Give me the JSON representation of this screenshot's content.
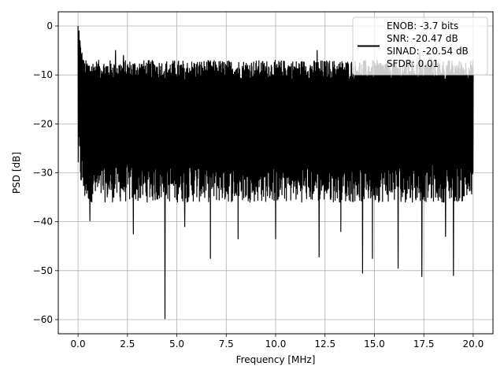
{
  "chart_data": {
    "type": "line",
    "title": "",
    "xlabel": "Frequency [MHz]",
    "ylabel": "PSD [dB]",
    "xlim": [
      -1.0,
      21.0
    ],
    "ylim": [
      -62.9,
      2.9
    ],
    "xticks": [
      0.0,
      2.5,
      5.0,
      7.5,
      10.0,
      12.5,
      15.0,
      17.5,
      20.0
    ],
    "xtick_labels": [
      "0.0",
      "2.5",
      "5.0",
      "7.5",
      "10.0",
      "12.5",
      "15.0",
      "17.5",
      "20.0"
    ],
    "yticks": [
      0,
      -10,
      -20,
      -30,
      -40,
      -50,
      -60
    ],
    "ytick_labels": [
      "0",
      "−10",
      "−20",
      "−30",
      "−40",
      "−50",
      "−60"
    ],
    "grid": true,
    "legend_position": "top-right",
    "series_color": "#000000",
    "series": [
      {
        "name": "",
        "x_start": 0.0,
        "x_end": 20.0,
        "typical_floor_db": -20.5,
        "typical_spread_db": [
          -32,
          -9
        ],
        "peak_points": [
          {
            "x": 0.0,
            "y": 0.0
          },
          {
            "x": 0.05,
            "y": -1.0
          },
          {
            "x": 0.1,
            "y": -3.0
          },
          {
            "x": 0.25,
            "y": -7.0
          },
          {
            "x": 1.9,
            "y": -5.0
          },
          {
            "x": 2.3,
            "y": -6.0
          },
          {
            "x": 12.1,
            "y": -5.0
          },
          {
            "x": 17.3,
            "y": -5.5
          }
        ],
        "dip_points": [
          {
            "x": 0.6,
            "y": -39.8
          },
          {
            "x": 2.8,
            "y": -42.5
          },
          {
            "x": 4.4,
            "y": -59.8
          },
          {
            "x": 5.4,
            "y": -41.0
          },
          {
            "x": 6.7,
            "y": -47.5
          },
          {
            "x": 8.1,
            "y": -43.5
          },
          {
            "x": 10.0,
            "y": -43.5
          },
          {
            "x": 12.2,
            "y": -47.2
          },
          {
            "x": 13.3,
            "y": -42.0
          },
          {
            "x": 14.4,
            "y": -50.5
          },
          {
            "x": 14.9,
            "y": -47.5
          },
          {
            "x": 16.2,
            "y": -49.5
          },
          {
            "x": 17.4,
            "y": -51.2
          },
          {
            "x": 19.0,
            "y": -51.0
          },
          {
            "x": 18.6,
            "y": -43.0
          }
        ]
      }
    ],
    "legend": {
      "lines": [
        "ENOB: -3.7 bits",
        "SNR: -20.47 dB",
        "SINAD: -20.54 dB",
        "SFDR: 0.01"
      ]
    }
  }
}
